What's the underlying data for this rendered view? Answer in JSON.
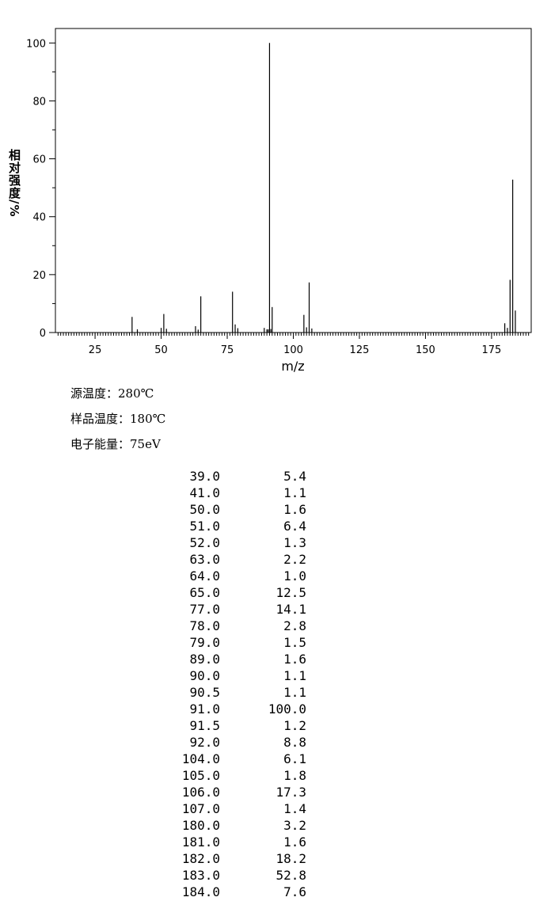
{
  "chart_data": {
    "type": "bar",
    "x_label": "m/z",
    "y_label": "相对强度/%",
    "x": [
      39,
      41,
      50,
      51,
      52,
      63,
      64,
      65,
      77,
      78,
      79,
      89,
      90,
      90.5,
      91,
      91.5,
      92,
      104,
      105,
      106,
      107,
      180,
      181,
      182,
      183,
      184
    ],
    "values": [
      5.4,
      1.1,
      1.6,
      6.4,
      1.3,
      2.2,
      1.0,
      12.5,
      14.1,
      2.8,
      1.5,
      1.6,
      1.1,
      1.1,
      100.0,
      1.2,
      8.8,
      6.1,
      1.8,
      17.3,
      1.4,
      3.2,
      1.6,
      18.2,
      52.8,
      7.6
    ],
    "color": "#000000",
    "xlim": [
      10,
      190
    ],
    "xticks": [
      25,
      50,
      75,
      100,
      125,
      150,
      175
    ],
    "ylim": [
      0,
      105
    ],
    "yticks": [
      0,
      20,
      40,
      60,
      80,
      100
    ]
  },
  "info": [
    "源温度：280℃",
    "样品温度：180℃",
    "电子能量：75eV"
  ],
  "table": {
    "rows": [
      [
        "39.0",
        "5.4"
      ],
      [
        "41.0",
        "1.1"
      ],
      [
        "50.0",
        "1.6"
      ],
      [
        "51.0",
        "6.4"
      ],
      [
        "52.0",
        "1.3"
      ],
      [
        "63.0",
        "2.2"
      ],
      [
        "64.0",
        "1.0"
      ],
      [
        "65.0",
        "12.5"
      ],
      [
        "77.0",
        "14.1"
      ],
      [
        "78.0",
        "2.8"
      ],
      [
        "79.0",
        "1.5"
      ],
      [
        "89.0",
        "1.6"
      ],
      [
        "90.0",
        "1.1"
      ],
      [
        "90.5",
        "1.1"
      ],
      [
        "91.0",
        "100.0"
      ],
      [
        "91.5",
        "1.2"
      ],
      [
        "92.0",
        "8.8"
      ],
      [
        "104.0",
        "6.1"
      ],
      [
        "105.0",
        "1.8"
      ],
      [
        "106.0",
        "17.3"
      ],
      [
        "107.0",
        "1.4"
      ],
      [
        "180.0",
        "3.2"
      ],
      [
        "181.0",
        "1.6"
      ],
      [
        "182.0",
        "18.2"
      ],
      [
        "183.0",
        "52.8"
      ],
      [
        "184.0",
        "7.6"
      ]
    ]
  }
}
